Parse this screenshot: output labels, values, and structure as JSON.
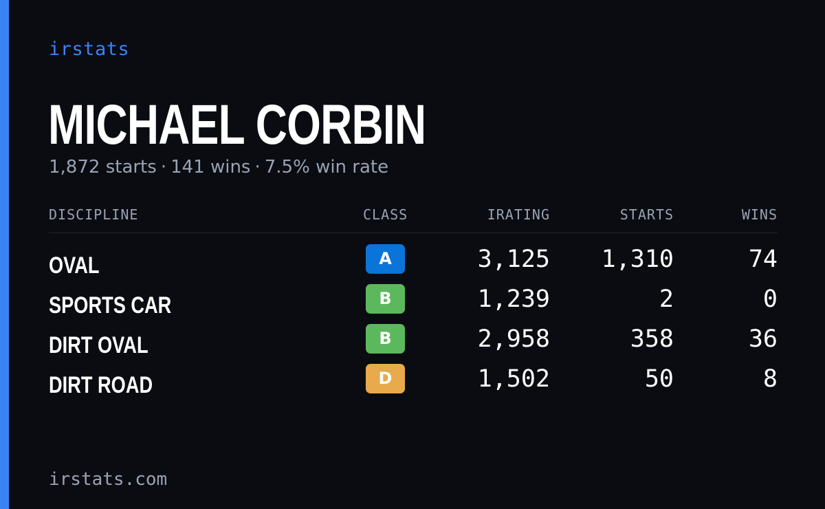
{
  "brand": "irstats",
  "driver": {
    "name": "MICHAEL CORBIN",
    "starts": "1,872 starts",
    "wins": "141 wins",
    "win_rate": "7.5% win rate",
    "separator": "·"
  },
  "table": {
    "headers": {
      "discipline": "DISCIPLINE",
      "class": "CLASS",
      "irating": "IRATING",
      "starts": "STARTS",
      "wins": "WINS"
    },
    "rows": [
      {
        "discipline": "OVAL",
        "class": "A",
        "class_color": "#0b74d8",
        "irating": "3,125",
        "starts": "1,310",
        "wins": "74"
      },
      {
        "discipline": "SPORTS CAR",
        "class": "B",
        "class_color": "#5cb85c",
        "irating": "1,239",
        "starts": "2",
        "wins": "0"
      },
      {
        "discipline": "DIRT OVAL",
        "class": "B",
        "class_color": "#5cb85c",
        "irating": "2,958",
        "starts": "358",
        "wins": "36"
      },
      {
        "discipline": "DIRT ROAD",
        "class": "D",
        "class_color": "#e8aa4a",
        "irating": "1,502",
        "starts": "50",
        "wins": "8"
      }
    ]
  },
  "footer": "irstats.com",
  "colors": {
    "accent": "#3b82f6",
    "background": "#0a0c12",
    "muted_text": "#9aa3b2"
  }
}
